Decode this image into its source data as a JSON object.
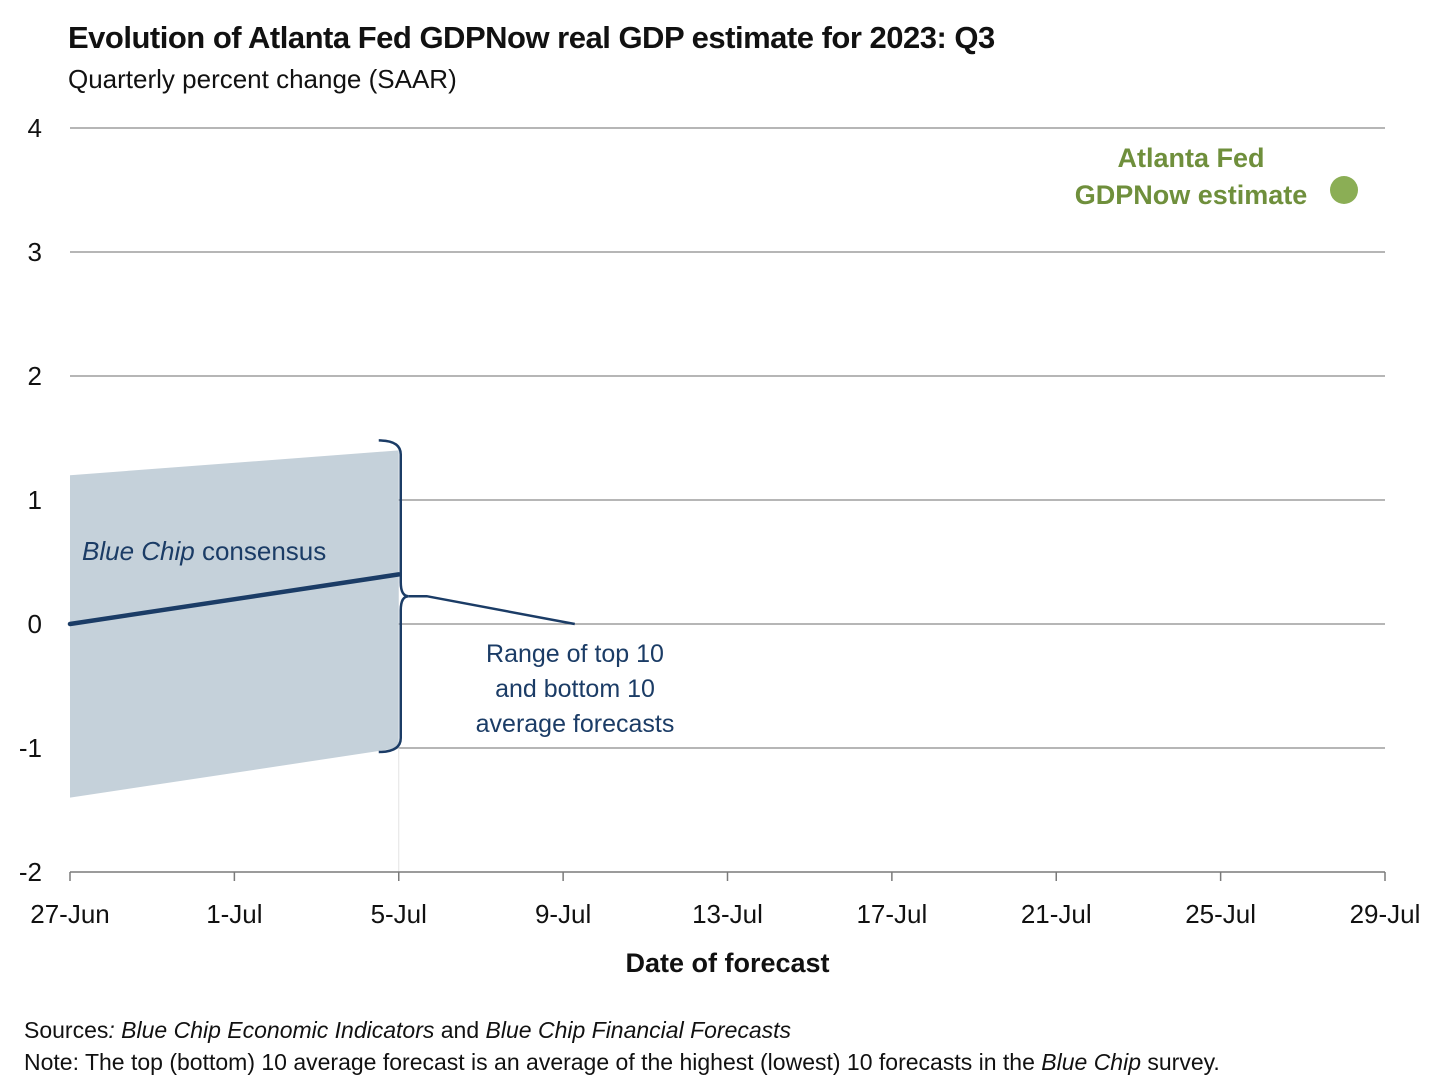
{
  "title": "Evolution of Atlanta Fed GDPNow real GDP estimate for 2023: Q3",
  "subtitle": "Quarterly percent change (SAAR)",
  "chart_data": {
    "type": "line",
    "title": "Evolution of Atlanta Fed GDPNow real GDP estimate for 2023: Q3",
    "subtitle": "Quarterly percent change (SAAR)",
    "xlabel": "Date of forecast",
    "ylabel": "",
    "x_type": "date",
    "x_ticks": [
      "27-Jun",
      "1-Jul",
      "5-Jul",
      "9-Jul",
      "13-Jul",
      "17-Jul",
      "21-Jul",
      "25-Jul",
      "29-Jul"
    ],
    "x_tick_dates": [
      "2023-06-27",
      "2023-07-01",
      "2023-07-05",
      "2023-07-09",
      "2023-07-13",
      "2023-07-17",
      "2023-07-21",
      "2023-07-25",
      "2023-07-29"
    ],
    "xlim": [
      "2023-06-27",
      "2023-07-29"
    ],
    "ylim": [
      -2,
      4
    ],
    "y_ticks": [
      4,
      3,
      2,
      1,
      0,
      -1,
      -2
    ],
    "grid": "horizontal",
    "series": [
      {
        "name": "Blue Chip consensus",
        "kind": "line",
        "color": "#1b3c66",
        "points": [
          {
            "x": "2023-06-27",
            "y": 0.0
          },
          {
            "x": "2023-07-05",
            "y": 0.4
          }
        ]
      },
      {
        "name": "Range of top 10 and bottom 10 average forecasts",
        "kind": "band",
        "color": "#c5d1da",
        "points": [
          {
            "x": "2023-06-27",
            "low": -1.4,
            "high": 1.2
          },
          {
            "x": "2023-07-05",
            "low": -1.0,
            "high": 1.4
          }
        ]
      },
      {
        "name": "Atlanta Fed GDPNow estimate",
        "kind": "marker",
        "color": "#8bae55",
        "points": []
      }
    ],
    "annotations": {
      "blue_chip_label_italic": "Blue Chip",
      "blue_chip_label_rest": " consensus",
      "range_label_lines": [
        "Range of top 10",
        "and bottom 10",
        "average forecasts"
      ],
      "gdpnow_label_lines": [
        "Atlanta Fed",
        "GDPNow estimate"
      ]
    }
  },
  "footer": {
    "sources_label": "Sources",
    "sources_parts": [
      {
        "text": ": Blue Chip Economic Indicators",
        "italic": true
      },
      {
        "text": " and ",
        "italic": false
      },
      {
        "text": "Blue Chip Financial Forecasts",
        "italic": true
      }
    ],
    "note_label": "Note:",
    "note_parts": [
      {
        "text": " The top (bottom) 10 average forecast is an average of the highest (lowest) 10 forecasts in the ",
        "italic": false
      },
      {
        "text": "Blue Chip",
        "italic": true
      },
      {
        "text": " survey.",
        "italic": false
      }
    ]
  }
}
